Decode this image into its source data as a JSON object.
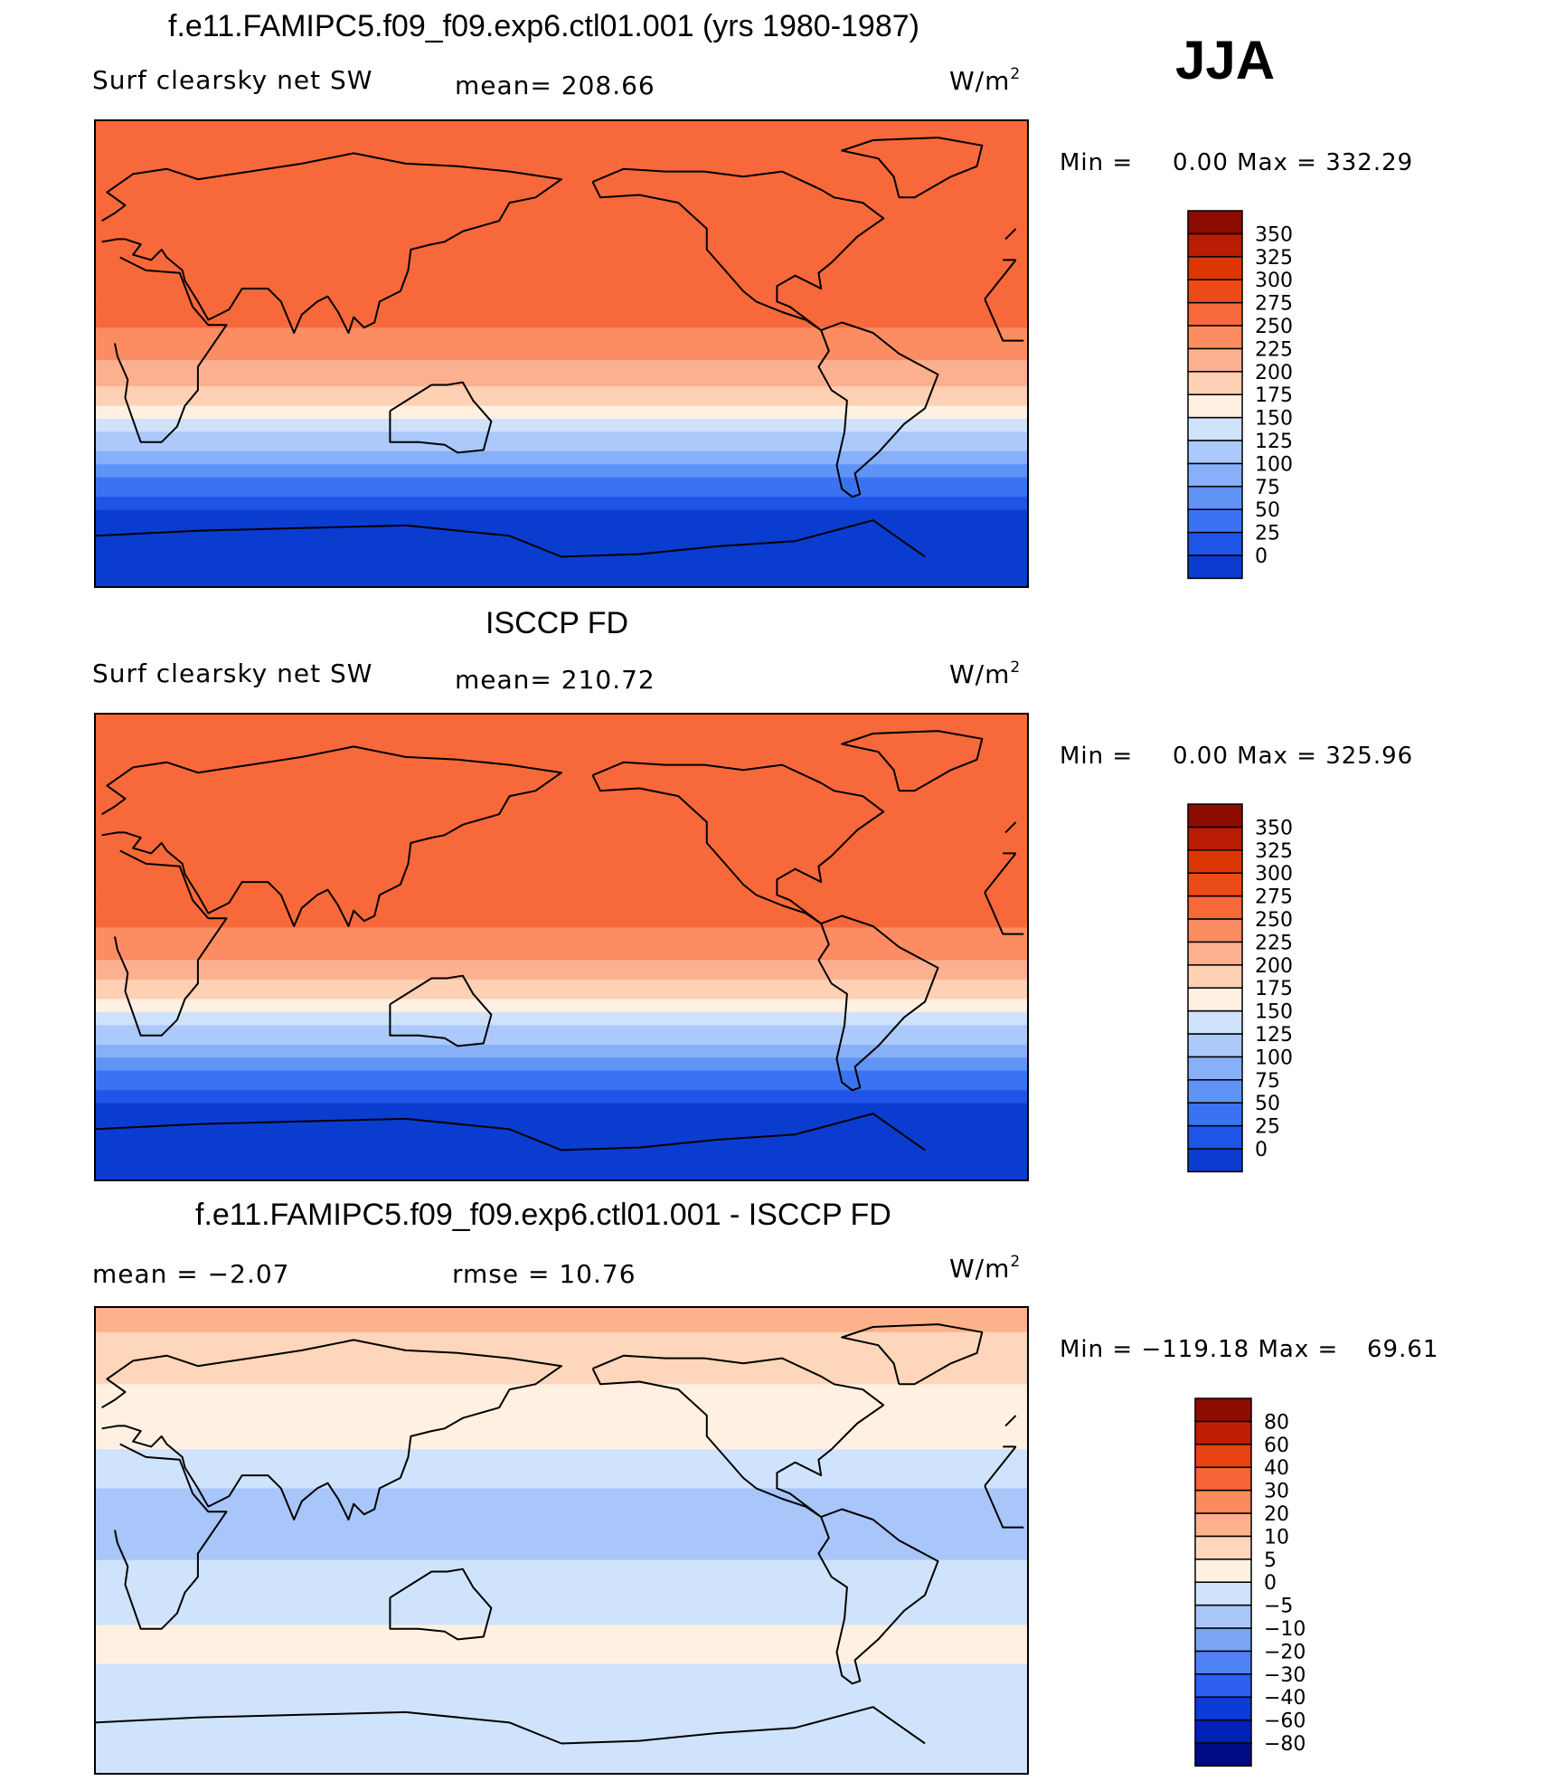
{
  "season": "JJA",
  "unit_text": "W/m",
  "unit_sup": "2",
  "panels": [
    {
      "title": "f.e11.FAMIPC5.f09_f09.exp6.ctl01.001 (yrs 1980-1987)",
      "variable": "Surf clearsky net SW",
      "stat_text": "mean= 208.66",
      "minmax_label": "Min =",
      "minmax_value": "0.00 Max = 332.29"
    },
    {
      "title": "ISCCP FD",
      "variable": "Surf clearsky net SW",
      "stat_text": "mean= 210.72",
      "minmax_label": "Min =",
      "minmax_value": "0.00 Max = 325.96"
    },
    {
      "title": "f.e11.FAMIPC5.f09_f09.exp6.ctl01.001 - ISCCP FD",
      "stat_mean": "mean =   −2.07",
      "stat_rmse": "rmse =   10.76",
      "minmax_label": "Min = −119.18 Max =",
      "minmax_value": "69.61"
    }
  ],
  "colors": {
    "abs_scale": [
      "#00108a",
      "#0020b0",
      "#0a3cd0",
      "#1e55e6",
      "#3a72f2",
      "#5f93f6",
      "#87b0f8",
      "#abc9fa",
      "#cfe2fb",
      "#fff0e2",
      "#fed0b4",
      "#fdb090",
      "#fc8c62",
      "#f7683a",
      "#ec4a18",
      "#dc3605",
      "#b81c02",
      "#8c0d00"
    ],
    "diff_scale": [
      "#000a82",
      "#0020b8",
      "#0a3cd8",
      "#2d5ff0",
      "#4f82f4",
      "#7aa5f7",
      "#a8c6fa",
      "#d0e3fc",
      "#fff0e2",
      "#fed6bc",
      "#fdb28c",
      "#fb8a5c",
      "#f46436",
      "#e64212",
      "#bf1c02",
      "#8c0d00"
    ]
  },
  "chart_data": [
    {
      "type": "heatmap",
      "title": "f.e11.FAMIPC5.f09_f09.exp6.ctl01.001 (yrs 1980-1987)",
      "subtitle": "Surf clearsky net SW",
      "season": "JJA",
      "units": "W/m2",
      "mean": 208.66,
      "min": 0.0,
      "max": 332.29,
      "colorbar_levels": [
        0,
        25,
        50,
        75,
        100,
        125,
        150,
        175,
        200,
        225,
        250,
        275,
        300,
        325,
        350
      ],
      "lat_band_values": [
        {
          "lat": 80,
          "value": 280
        },
        {
          "lat": 60,
          "value": 290
        },
        {
          "lat": 40,
          "value": 300
        },
        {
          "lat": 20,
          "value": 290
        },
        {
          "lat": 0,
          "value": 260
        },
        {
          "lat": -20,
          "value": 200
        },
        {
          "lat": -40,
          "value": 110
        },
        {
          "lat": -60,
          "value": 25
        },
        {
          "lat": -80,
          "value": 0
        }
      ]
    },
    {
      "type": "heatmap",
      "title": "ISCCP FD",
      "subtitle": "Surf clearsky net SW",
      "season": "JJA",
      "units": "W/m2",
      "mean": 210.72,
      "min": 0.0,
      "max": 325.96,
      "colorbar_levels": [
        0,
        25,
        50,
        75,
        100,
        125,
        150,
        175,
        200,
        225,
        250,
        275,
        300,
        325,
        350
      ],
      "lat_band_values": [
        {
          "lat": 80,
          "value": 275
        },
        {
          "lat": 60,
          "value": 285
        },
        {
          "lat": 40,
          "value": 300
        },
        {
          "lat": 20,
          "value": 290
        },
        {
          "lat": 0,
          "value": 265
        },
        {
          "lat": -20,
          "value": 200
        },
        {
          "lat": -40,
          "value": 110
        },
        {
          "lat": -60,
          "value": 25
        },
        {
          "lat": -80,
          "value": 0
        }
      ]
    },
    {
      "type": "heatmap",
      "title": "f.e11.FAMIPC5.f09_f09.exp6.ctl01.001 - ISCCP FD",
      "season": "JJA",
      "units": "W/m2",
      "mean": -2.07,
      "rmse": 10.76,
      "min": -119.18,
      "max": 69.61,
      "colorbar_levels": [
        -80,
        -60,
        -40,
        -30,
        -20,
        -10,
        -5,
        0,
        5,
        10,
        20,
        30,
        40,
        60,
        80
      ],
      "lat_band_values": [
        {
          "lat": 80,
          "value": 10
        },
        {
          "lat": 60,
          "value": 5
        },
        {
          "lat": 40,
          "value": 2
        },
        {
          "lat": 20,
          "value": -5
        },
        {
          "lat": 0,
          "value": -6
        },
        {
          "lat": -20,
          "value": -3
        },
        {
          "lat": -40,
          "value": 2
        },
        {
          "lat": -60,
          "value": -3
        },
        {
          "lat": -80,
          "value": -2
        }
      ]
    }
  ]
}
